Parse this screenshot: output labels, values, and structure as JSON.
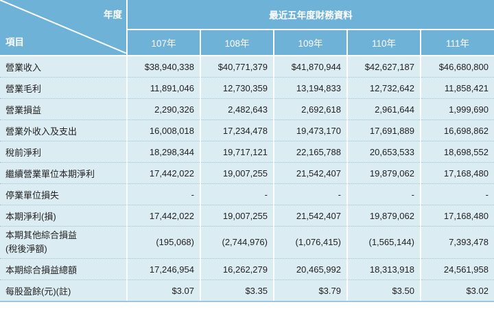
{
  "header": {
    "year_label": "年度",
    "item_label": "項目",
    "group_title": "最近五年度財務資料",
    "years": [
      "107年",
      "108年",
      "109年",
      "110年",
      "111年"
    ]
  },
  "rows": [
    {
      "label": "營業收入",
      "values": [
        "$38,940,338",
        "$40,771,379",
        "$41,870,944",
        "$42,627,187",
        "$46,680,800"
      ]
    },
    {
      "label": "營業毛利",
      "values": [
        "11,891,046",
        "12,730,359",
        "13,194,833",
        "12,732,642",
        "11,858,421"
      ]
    },
    {
      "label": "營業損益",
      "values": [
        "2,290,326",
        "2,482,643",
        "2,692,618",
        "2,961,644",
        "1,999,690"
      ]
    },
    {
      "label": "營業外收入及支出",
      "values": [
        "16,008,018",
        "17,234,478",
        "19,473,170",
        "17,691,889",
        "16,698,862"
      ]
    },
    {
      "label": "稅前淨利",
      "values": [
        "18,298,344",
        "19,717,121",
        "22,165,788",
        "20,653,533",
        "18,698,552"
      ]
    },
    {
      "label": "繼續營業單位本期淨利",
      "values": [
        "17,442,022",
        "19,007,255",
        "21,542,407",
        "19,879,062",
        "17,168,480"
      ]
    },
    {
      "label": "停業單位損失",
      "values": [
        "-",
        "-",
        "-",
        "-",
        "-"
      ]
    },
    {
      "label": "本期淨利(損)",
      "values": [
        "17,442,022",
        "19,007,255",
        "21,542,407",
        "19,879,062",
        "17,168,480"
      ]
    },
    {
      "label": "本期其他綜合損益",
      "label2": "(稅後淨額)",
      "values": [
        "(195,068)",
        "(2,744,976)",
        "(1,076,415)",
        "(1,565,144)",
        "7,393,478"
      ]
    },
    {
      "label": "本期綜合損益總額",
      "values": [
        "17,246,954",
        "16,262,279",
        "20,465,992",
        "18,313,918",
        "24,561,958"
      ]
    },
    {
      "label": "每股盈餘(元)(註)",
      "values": [
        "$3.07",
        "$3.35",
        "$3.79",
        "$3.50",
        "$3.02"
      ]
    }
  ]
}
